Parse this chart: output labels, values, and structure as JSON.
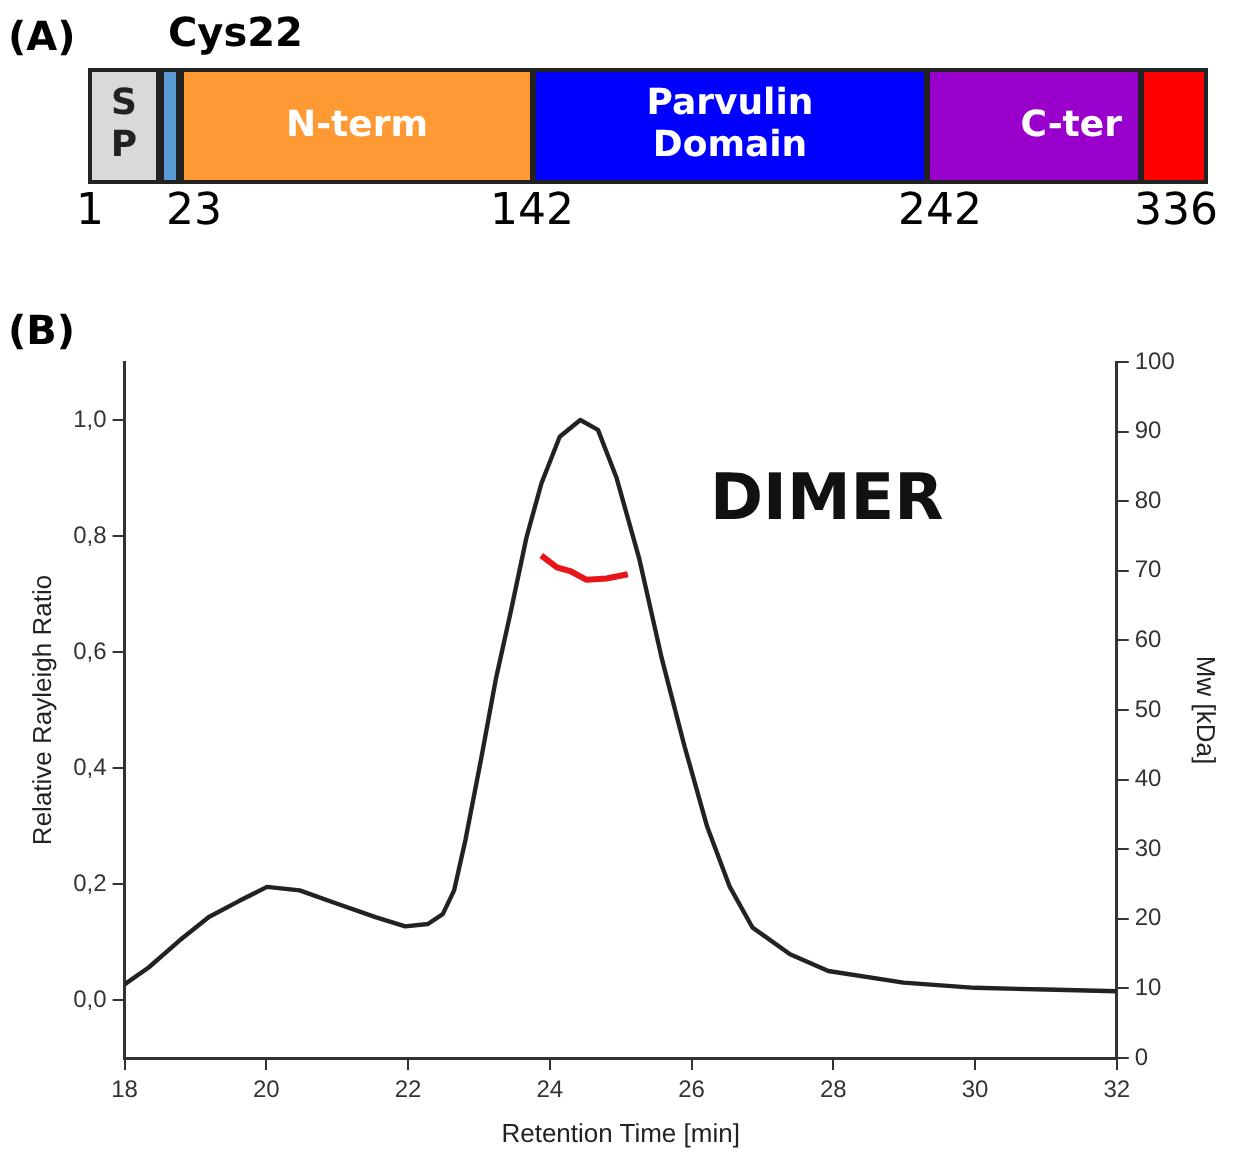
{
  "chart_data": [
    {
      "type": "other",
      "title": "(A)",
      "categories": [
        "S P",
        null,
        "N-term",
        "Parvulin Domain",
        "C-ter",
        null
      ],
      "colors": [
        "#d9d9d9",
        "#5b9bd5",
        "#ff9933",
        "#0000ff",
        "#9900cc",
        "#ff0000"
      ],
      "annotations": [
        "Cys22",
        "1",
        "23",
        "142",
        "242",
        "336"
      ]
    },
    {
      "type": "line",
      "title": "(B)",
      "xlabel": "Retention Time [min]",
      "ylabel": "Relative Rayleigh Ratio",
      "y2label": "Mw [kDa]",
      "annotations": [
        "DIMER"
      ],
      "xlim": [
        18,
        32
      ],
      "xticks": [
        18,
        20,
        22,
        24,
        26,
        28,
        30,
        32
      ],
      "ylim": [
        -0.1,
        1.1
      ],
      "yticks": [
        {
          "value": 0,
          "label": "0,0"
        },
        {
          "value": 0.2,
          "label": "0,2"
        },
        {
          "value": 0.4,
          "label": "0,4"
        },
        {
          "value": 0.6,
          "label": "0,6"
        },
        {
          "value": 0.8,
          "label": "0,8"
        },
        {
          "value": 1,
          "label": "1,0"
        }
      ],
      "y2lim": [
        0,
        100
      ],
      "y2ticks": [
        0,
        10,
        20,
        30,
        40,
        50,
        60,
        70,
        80,
        90,
        100
      ],
      "grid": false,
      "legend": false,
      "marker": "none",
      "line_style": "solid",
      "series": [
        {
          "color": "#222222",
          "x": [
            18,
            18.34,
            18.77,
            19.19,
            19.62,
            20.01,
            20.47,
            21.0,
            21.54,
            21.96,
            22.28,
            22.49,
            22.65,
            22.81,
            23.03,
            23.24,
            23.45,
            23.67,
            23.88,
            24.14,
            24.43,
            24.68,
            24.94,
            25.26,
            25.58,
            25.9,
            26.22,
            26.54,
            26.86,
            27.39,
            27.93,
            28.99,
            30.0,
            31.0,
            32.0
          ],
          "values": [
            0.027,
            0.056,
            0.102,
            0.143,
            0.171,
            0.195,
            0.189,
            0.166,
            0.143,
            0.127,
            0.131,
            0.148,
            0.189,
            0.276,
            0.415,
            0.554,
            0.67,
            0.797,
            0.89,
            0.971,
            1.0,
            0.983,
            0.901,
            0.762,
            0.589,
            0.438,
            0.299,
            0.195,
            0.125,
            0.079,
            0.05,
            0.03,
            0.021,
            0.018,
            0.015
          ]
        },
        {
          "color": "#e8141a",
          "axis": "y2",
          "x": [
            23.88,
            24.1,
            24.3,
            24.52,
            24.8,
            25.1
          ],
          "values": [
            72.2,
            70.5,
            69.9,
            68.7,
            68.9,
            69.5
          ]
        }
      ]
    }
  ]
}
